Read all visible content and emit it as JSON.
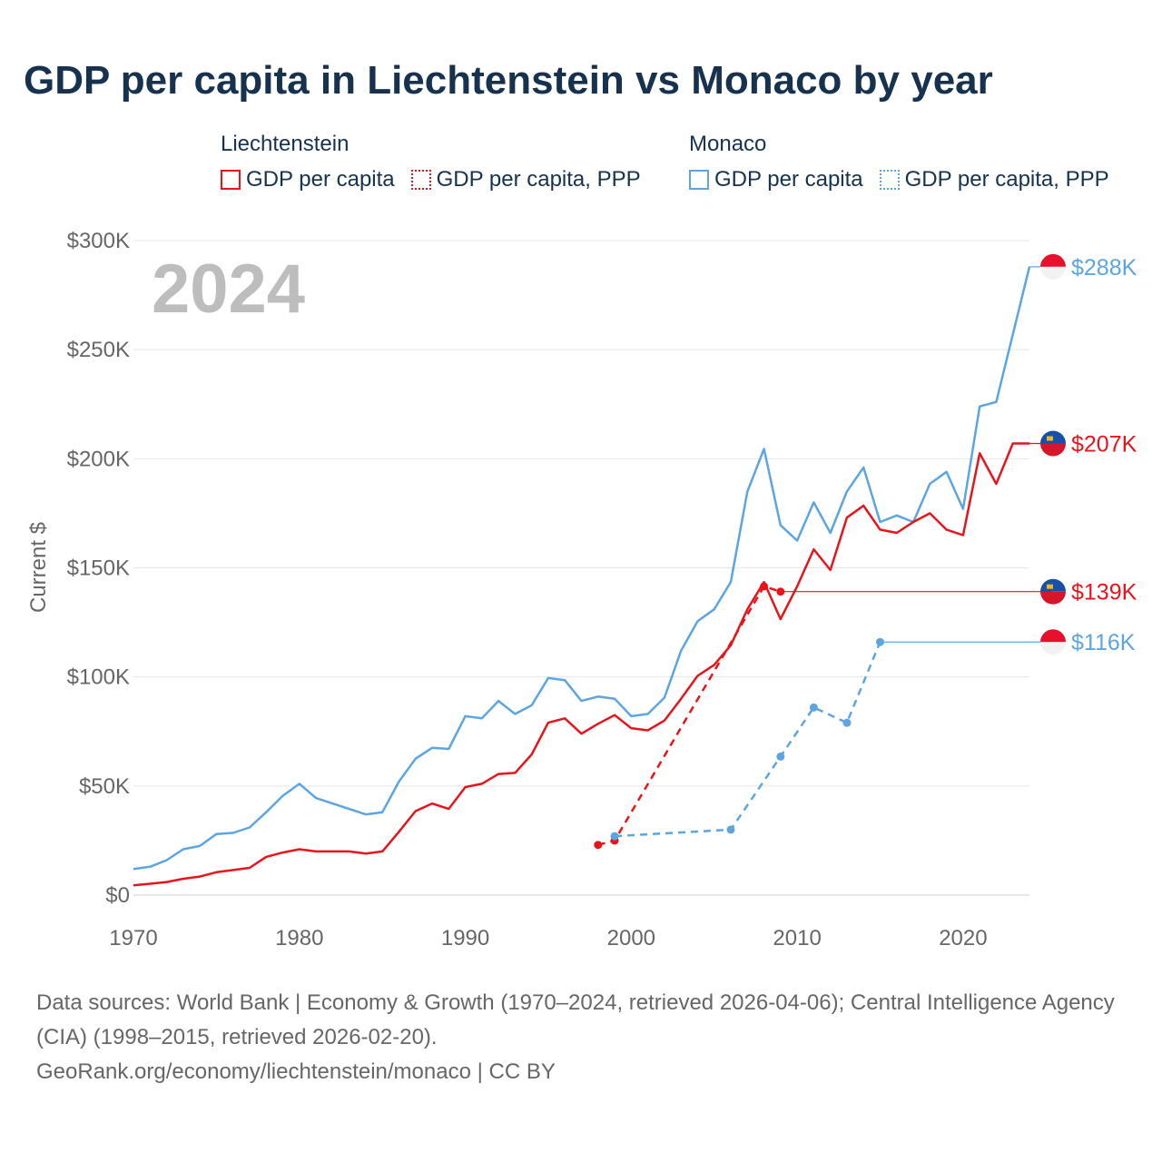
{
  "title": "GDP per capita in Liechtenstein vs Monaco by year",
  "legend": {
    "liechtenstein": {
      "country": "Liechtenstein",
      "gdp_label": "GDP per capita",
      "ppp_label": "GDP per capita, PPP",
      "color": "#e8141c"
    },
    "monaco": {
      "country": "Monaco",
      "gdp_label": "GDP per capita",
      "ppp_label": "GDP per capita, PPP",
      "color": "#5da5e0"
    }
  },
  "chart_data": {
    "type": "line",
    "year_label": "2024",
    "ylabel": "Current $",
    "xlim": [
      1970,
      2024
    ],
    "ylim": [
      0,
      300000
    ],
    "x_ticks": [
      1970,
      1980,
      1990,
      2000,
      2010,
      2020
    ],
    "y_ticks": [
      {
        "value": 0,
        "label": "$0"
      },
      {
        "value": 50000,
        "label": "$50K"
      },
      {
        "value": 100000,
        "label": "$100K"
      },
      {
        "value": 150000,
        "label": "$150K"
      },
      {
        "value": 200000,
        "label": "$200K"
      },
      {
        "value": 250000,
        "label": "$250K"
      },
      {
        "value": 300000,
        "label": "$300K"
      }
    ],
    "series": [
      {
        "name": "Monaco GDP per capita",
        "key": "monaco_gdp",
        "color": "#5da5e0",
        "style": "solid",
        "end_label": "$288K",
        "flag": "monaco",
        "x": [
          1970,
          1971,
          1972,
          1973,
          1974,
          1975,
          1976,
          1977,
          1978,
          1979,
          1980,
          1981,
          1982,
          1983,
          1984,
          1985,
          1986,
          1987,
          1988,
          1989,
          1990,
          1991,
          1992,
          1993,
          1994,
          1995,
          1996,
          1997,
          1998,
          1999,
          2000,
          2001,
          2002,
          2003,
          2004,
          2005,
          2006,
          2007,
          2008,
          2009,
          2010,
          2011,
          2012,
          2013,
          2014,
          2015,
          2016,
          2017,
          2018,
          2019,
          2020,
          2021,
          2022,
          2023,
          2024
        ],
        "values": [
          12000,
          13000,
          16000,
          21000,
          22500,
          28000,
          28500,
          31000,
          38000,
          45500,
          51000,
          44500,
          42000,
          39500,
          37000,
          38000,
          52000,
          62500,
          67500,
          67000,
          82000,
          81000,
          89000,
          83000,
          87000,
          99500,
          98500,
          89000,
          91000,
          90000,
          82000,
          83000,
          90500,
          112000,
          125500,
          131000,
          143500,
          185000,
          204500,
          169500,
          162500,
          180000,
          166000,
          185000,
          196000,
          171000,
          174000,
          171000,
          188500,
          194000,
          177000,
          224000,
          226000,
          257000,
          288000
        ]
      },
      {
        "name": "Liechtenstein GDP per capita",
        "key": "liechtenstein_gdp",
        "color": "#e8141c",
        "style": "solid",
        "end_label": "$207K",
        "flag": "liechtenstein",
        "x": [
          1970,
          1971,
          1972,
          1973,
          1974,
          1975,
          1976,
          1977,
          1978,
          1979,
          1980,
          1981,
          1982,
          1983,
          1984,
          1985,
          1986,
          1987,
          1988,
          1989,
          1990,
          1991,
          1992,
          1993,
          1994,
          1995,
          1996,
          1997,
          1998,
          1999,
          2000,
          2001,
          2002,
          2003,
          2004,
          2005,
          2006,
          2007,
          2008,
          2009,
          2010,
          2011,
          2012,
          2013,
          2014,
          2015,
          2016,
          2017,
          2018,
          2019,
          2020,
          2021,
          2022,
          2023,
          2024
        ],
        "values": [
          4500,
          5200,
          6000,
          7500,
          8500,
          10500,
          11500,
          12500,
          17500,
          19500,
          21000,
          20000,
          20000,
          20000,
          19000,
          20000,
          29000,
          38500,
          42000,
          39500,
          49500,
          51000,
          55500,
          56000,
          64500,
          79000,
          81000,
          74000,
          78500,
          82500,
          76500,
          75500,
          80000,
          90000,
          100500,
          105500,
          114500,
          131000,
          143500,
          126500,
          141500,
          158500,
          149000,
          173000,
          178500,
          167500,
          166000,
          171000,
          175000,
          167500,
          165000,
          202500,
          188500,
          207000,
          207000
        ]
      },
      {
        "name": "Liechtenstein GDP per capita, PPP",
        "key": "liechtenstein_ppp",
        "color": "#e8141c",
        "style": "dashed",
        "end_label": "$139K",
        "flag": "liechtenstein",
        "x": [
          1998,
          1999,
          2008,
          2009
        ],
        "values": [
          23000,
          25000,
          141500,
          139100
        ]
      },
      {
        "name": "Monaco GDP per capita, PPP",
        "key": "monaco_ppp",
        "color": "#5da5e0",
        "style": "dashed",
        "end_label": "$116K",
        "flag": "monaco",
        "x": [
          1999,
          2006,
          2009,
          2011,
          2013,
          2015
        ],
        "values": [
          27000,
          30000,
          63500,
          86000,
          79000,
          116000
        ]
      }
    ]
  },
  "footer": {
    "sources": "Data sources: World Bank | Economy & Growth (1970–2024, retrieved 2026-04-06); Central Intelligence Agency (CIA) (1998–2015, retrieved 2026-02-20).",
    "credit": "GeoRank.org/economy/liechtenstein/monaco | CC BY"
  }
}
